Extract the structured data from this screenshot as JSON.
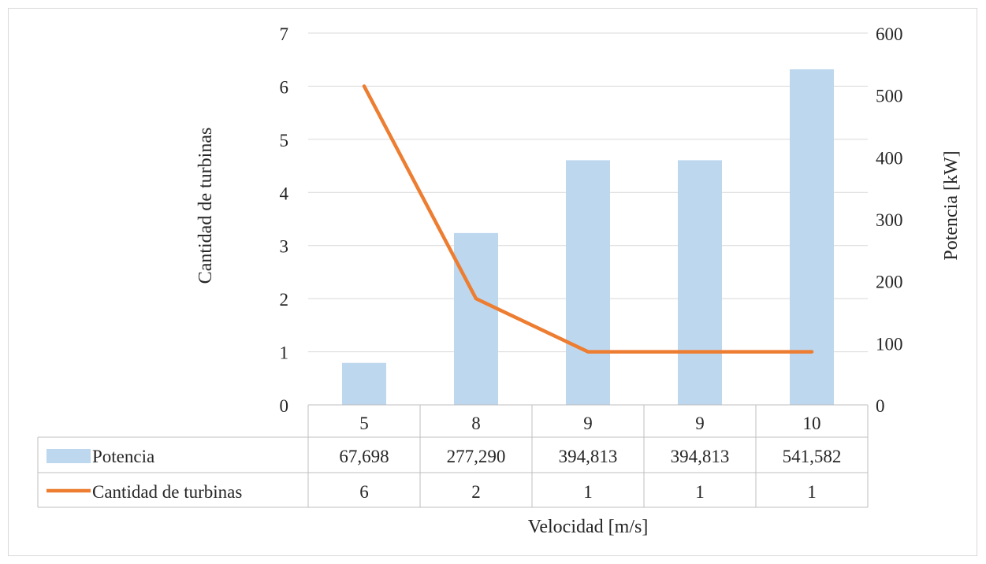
{
  "chart_data": {
    "type": "bar+line",
    "categories": [
      "5",
      "8",
      "9",
      "9",
      "10"
    ],
    "xlabel": "Velocidad [m/s]",
    "y_left": {
      "label": "Cantidad de turbinas",
      "lim": [
        0,
        7
      ],
      "ticks": [
        "0",
        "1",
        "2",
        "3",
        "4",
        "5",
        "6",
        "7"
      ]
    },
    "y_right": {
      "label": "Potencia [kW]",
      "lim": [
        0,
        600
      ],
      "ticks": [
        "0",
        "100",
        "200",
        "300",
        "400",
        "500",
        "600"
      ]
    },
    "grid": true,
    "series": [
      {
        "name": "Potencia",
        "kind": "bar",
        "axis": "right",
        "color": "#bdd7ee",
        "values": [
          67.698,
          277.29,
          394.813,
          394.813,
          541.582
        ],
        "labels": [
          "67,698",
          "277,290",
          "394,813",
          "394,813",
          "541,582"
        ]
      },
      {
        "name": "Cantidad de turbinas",
        "kind": "line",
        "axis": "left",
        "color": "#ed7d31",
        "values": [
          6,
          2,
          1,
          1,
          1
        ],
        "labels": [
          "6",
          "2",
          "1",
          "1",
          "1"
        ]
      }
    ],
    "legend": "data-table"
  }
}
